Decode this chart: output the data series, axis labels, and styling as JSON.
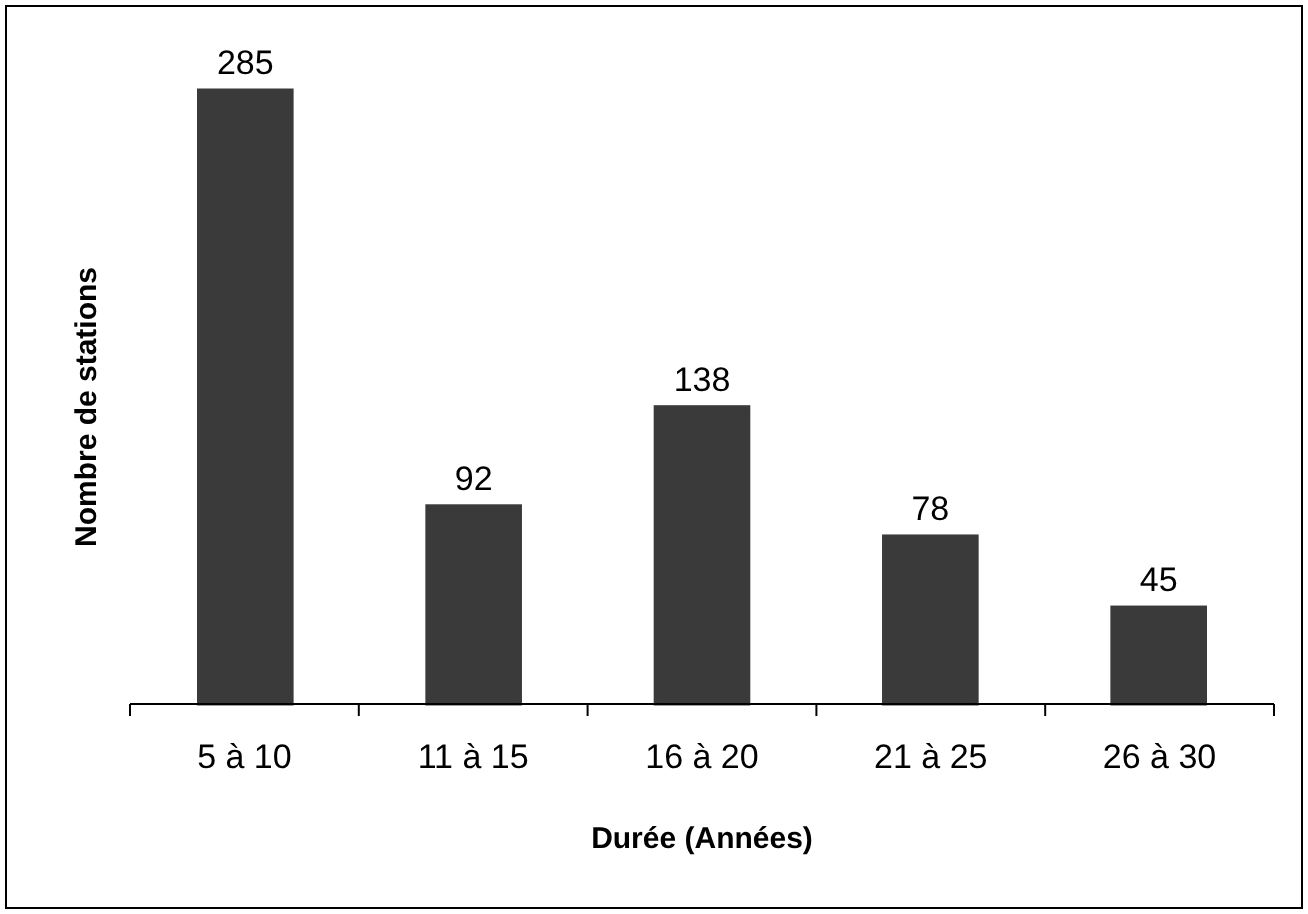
{
  "chart_data": {
    "type": "bar",
    "xlabel": "Durée (Années)",
    "ylabel": "Nombre de stations",
    "categories": [
      "5 à 10",
      "11 à 15",
      "16 à 20",
      "21 à 25",
      "26 à 30"
    ],
    "values": [
      285,
      92,
      138,
      78,
      45
    ],
    "color": "#3a3a3a",
    "data_labels": true
  }
}
